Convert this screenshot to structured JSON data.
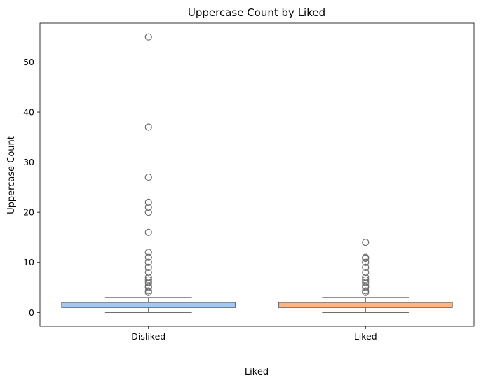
{
  "chart_data": {
    "type": "box",
    "title": "Uppercase Count by Liked",
    "xlabel": "Liked",
    "ylabel": "Uppercase Count",
    "categories": [
      "Disliked",
      "Liked"
    ],
    "ylim": [
      -2.75,
      57.75
    ],
    "yticks": [
      0,
      10,
      20,
      30,
      40,
      50
    ],
    "grid": false,
    "boxes": [
      {
        "category": "Disliked",
        "color": "#a1c9f4",
        "q1": 1,
        "median": 1,
        "q3": 2,
        "whisker_low": 0,
        "whisker_high": 3,
        "outliers": [
          4,
          4.3,
          5,
          5.3,
          6,
          6.5,
          7,
          8,
          9,
          10,
          11,
          12,
          16,
          20,
          21,
          22,
          27,
          37,
          55
        ]
      },
      {
        "category": "Liked",
        "color": "#ffb482",
        "q1": 1,
        "median": 1,
        "q3": 2,
        "whisker_low": 0,
        "whisker_high": 3,
        "outliers": [
          4,
          4.3,
          5,
          5.3,
          6,
          6.5,
          7,
          8,
          9,
          10,
          10.8,
          11,
          14
        ]
      }
    ]
  }
}
